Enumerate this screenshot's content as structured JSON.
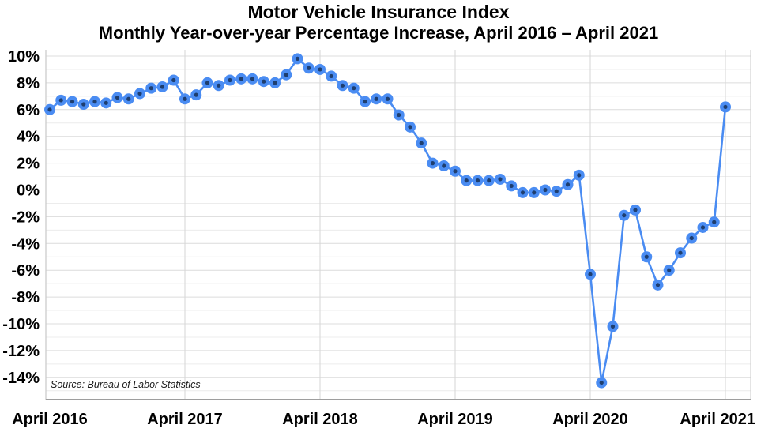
{
  "header": {
    "title": "Motor Vehicle Insurance Index",
    "subtitle": "Monthly Year-over-year Percentage Increase, April 2016 – April 2021"
  },
  "source_note": "Source: Bureau of Labor Statistics",
  "chart_data": {
    "type": "line",
    "title": "Motor Vehicle Insurance Index",
    "subtitle": "Monthly Year-over-year Percentage Increase, April 2016 – April 2021",
    "xlabel": "",
    "ylabel": "",
    "ylim": [
      -15.6,
      10.5
    ],
    "y_major_step": 2,
    "y_minor_step": 1,
    "grid": true,
    "legend": "none",
    "y_ticks": [
      {
        "label": "10%",
        "value": 10
      },
      {
        "label": "8%",
        "value": 8
      },
      {
        "label": "6%",
        "value": 6
      },
      {
        "label": "4%",
        "value": 4
      },
      {
        "label": "2%",
        "value": 2
      },
      {
        "label": "0%",
        "value": 0
      },
      {
        "label": "-2%",
        "value": -2
      },
      {
        "label": "-4%",
        "value": -4
      },
      {
        "label": "-6%",
        "value": -6
      },
      {
        "label": "-8%",
        "value": -8
      },
      {
        "label": "-10%",
        "value": -10
      },
      {
        "label": "-12%",
        "value": -12
      },
      {
        "label": "-14%",
        "value": -14
      }
    ],
    "x_ticks": [
      {
        "label": "April 2016",
        "month_index": 0
      },
      {
        "label": "April 2017",
        "month_index": 12
      },
      {
        "label": "April 2018",
        "month_index": 24
      },
      {
        "label": "April 2019",
        "month_index": 36
      },
      {
        "label": "April 2020",
        "month_index": 48
      },
      {
        "label": "April 2021",
        "month_index": 60
      }
    ],
    "months": [
      "Apr 2016",
      "May 2016",
      "Jun 2016",
      "Jul 2016",
      "Aug 2016",
      "Sep 2016",
      "Oct 2016",
      "Nov 2016",
      "Dec 2016",
      "Jan 2017",
      "Feb 2017",
      "Mar 2017",
      "Apr 2017",
      "May 2017",
      "Jun 2017",
      "Jul 2017",
      "Aug 2017",
      "Sep 2017",
      "Oct 2017",
      "Nov 2017",
      "Dec 2017",
      "Jan 2018",
      "Feb 2018",
      "Mar 2018",
      "Apr 2018",
      "May 2018",
      "Jun 2018",
      "Jul 2018",
      "Aug 2018",
      "Sep 2018",
      "Oct 2018",
      "Nov 2018",
      "Dec 2018",
      "Jan 2019",
      "Feb 2019",
      "Mar 2019",
      "Apr 2019",
      "May 2019",
      "Jun 2019",
      "Jul 2019",
      "Aug 2019",
      "Sep 2019",
      "Oct 2019",
      "Nov 2019",
      "Dec 2019",
      "Jan 2020",
      "Feb 2020",
      "Mar 2020",
      "Apr 2020",
      "May 2020",
      "Jun 2020",
      "Jul 2020",
      "Aug 2020",
      "Sep 2020",
      "Oct 2020",
      "Nov 2020",
      "Dec 2020",
      "Jan 2021",
      "Feb 2021",
      "Mar 2021",
      "Apr 2021"
    ],
    "values": [
      6.0,
      6.7,
      6.6,
      6.4,
      6.6,
      6.5,
      6.9,
      6.8,
      7.2,
      7.6,
      7.7,
      8.2,
      6.8,
      7.1,
      8.0,
      7.8,
      8.2,
      8.3,
      8.3,
      8.1,
      8.0,
      8.6,
      9.8,
      9.1,
      9.0,
      8.5,
      7.8,
      7.6,
      6.6,
      6.8,
      6.8,
      5.6,
      4.7,
      3.5,
      2.0,
      1.8,
      1.4,
      0.7,
      0.7,
      0.7,
      0.8,
      0.3,
      -0.2,
      -0.2,
      0.0,
      -0.1,
      0.4,
      1.1,
      -6.3,
      -14.4,
      -10.2,
      -1.9,
      -1.5,
      -5.0,
      -7.1,
      -6.0,
      -4.7,
      -3.6,
      -2.8,
      -2.4,
      6.2
    ],
    "colors": {
      "line": "#4a8cf2",
      "marker": "#4a8cf2",
      "marker_core": "#1e3e6f",
      "grid_minor": "#ececec",
      "grid_major": "#dcdcdc",
      "grid_vertical": "#d6d6d6",
      "plot_border": "#c9c9c9",
      "axis_line": "#9e9e9e",
      "text": "#000000"
    }
  }
}
